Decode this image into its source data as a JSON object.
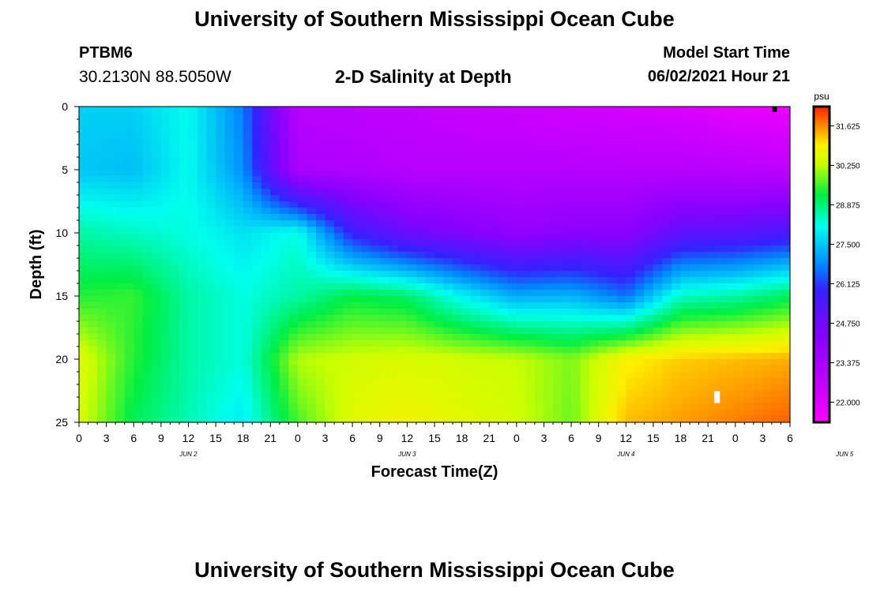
{
  "header": {
    "title": "University of Southern Mississippi Ocean Cube",
    "station": "PTBM6",
    "coords": "30.2130N  88.5050W",
    "subtitle": "2-D Salinity at Depth",
    "model_start_label": "Model Start Time",
    "model_start_value": "06/02/2021 Hour 21"
  },
  "footer": {
    "title": "University of Southern Mississippi Ocean Cube"
  },
  "chart_data": {
    "type": "heatmap",
    "xlabel": "Forecast Time(Z)",
    "ylabel": "Depth (ft)",
    "x_ticks": [
      "0",
      "3",
      "6",
      "9",
      "12",
      "15",
      "18",
      "21",
      "0",
      "3",
      "6",
      "9",
      "12",
      "15",
      "18",
      "21",
      "0",
      "3",
      "6",
      "9",
      "12",
      "15",
      "18",
      "21",
      "0",
      "3",
      "6"
    ],
    "x_hours_range": [
      0,
      78
    ],
    "day_labels": [
      {
        "label": "JUN 2",
        "hour": 12
      },
      {
        "label": "JUN 3",
        "hour": 36
      },
      {
        "label": "JUN 4",
        "hour": 60
      },
      {
        "label": "JUN 5",
        "hour": 84
      }
    ],
    "y_ticks": [
      0,
      5,
      10,
      15,
      20,
      25
    ],
    "y_range": [
      0,
      25
    ],
    "colorbar": {
      "unit": "psu",
      "ticks": [
        "31.625",
        "30.250",
        "28.875",
        "27.500",
        "26.125",
        "24.750",
        "23.375",
        "22.000"
      ],
      "range": [
        21.3,
        32.3
      ]
    },
    "grid_hours": [
      0,
      6,
      12,
      18,
      24,
      30,
      36,
      42,
      48,
      54,
      60,
      66,
      72,
      78
    ],
    "grid_depths": [
      0,
      5,
      10,
      15,
      20,
      25
    ],
    "grid_values": [
      [
        27.6,
        27.6,
        28.1,
        26.7,
        22.9,
        22.8,
        22.7,
        22.5,
        22.4,
        22.3,
        22.2,
        22.1,
        21.8,
        21.7
      ],
      [
        27.5,
        27.4,
        28.1,
        26.9,
        23.3,
        23.2,
        23.0,
        23.0,
        23.0,
        23.0,
        23.0,
        23.0,
        22.9,
        22.8
      ],
      [
        28.6,
        28.4,
        28.2,
        27.8,
        28.2,
        25.8,
        24.8,
        24.4,
        24.0,
        24.2,
        24.2,
        25.1,
        25.2,
        25.5
      ],
      [
        29.4,
        29.5,
        28.6,
        28.2,
        28.6,
        29.2,
        29.0,
        28.0,
        27.2,
        27.3,
        26.6,
        28.4,
        28.6,
        29.1
      ],
      [
        30.6,
        29.4,
        28.6,
        28.2,
        30.2,
        30.4,
        30.5,
        30.4,
        30.3,
        29.9,
        30.9,
        31.2,
        31.3,
        31.4
      ],
      [
        30.5,
        29.1,
        28.5,
        27.9,
        29.6,
        30.6,
        30.8,
        30.6,
        30.4,
        29.8,
        31.3,
        31.5,
        31.7,
        31.9
      ]
    ],
    "markers": [
      {
        "hour": 76.3,
        "depth": 0.2,
        "color": "#000000"
      },
      {
        "hour": 70.0,
        "depth": 23.0,
        "color": "#ffffff"
      }
    ]
  }
}
